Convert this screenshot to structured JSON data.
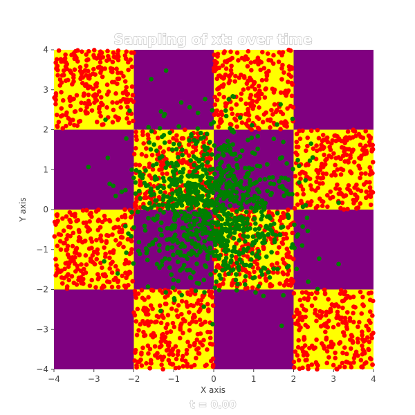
{
  "chart_data": {
    "type": "scatter",
    "title": "Sampling of xt: over time",
    "xlabel": "X axis",
    "ylabel": "Y axis",
    "xlim": [
      -4,
      4
    ],
    "ylim": [
      -4,
      4
    ],
    "xticks": [
      -4,
      -3,
      -2,
      -1,
      0,
      1,
      2,
      3,
      4
    ],
    "yticks": [
      -4,
      -3,
      -2,
      -1,
      0,
      1,
      2,
      3,
      4
    ],
    "tick_labels": [
      "−4",
      "−3",
      "−2",
      "−1",
      "0",
      "1",
      "2",
      "3",
      "4"
    ],
    "grid": false,
    "legend": "none",
    "annotation": "t = 0.00",
    "background": {
      "type": "checkerboard",
      "cell_size": 2,
      "colors": {
        "filled": "#ffff00",
        "empty": "#800080"
      },
      "filled_cells": [
        [
          -4,
          2
        ],
        [
          0,
          2
        ],
        [
          -2,
          0
        ],
        [
          2,
          0
        ],
        [
          -4,
          -2
        ],
        [
          0,
          -2
        ],
        [
          -2,
          -4
        ],
        [
          2,
          -4
        ]
      ]
    },
    "series": [
      {
        "marker_color": "#ff0000",
        "kind": "uniform_in_filled_cells",
        "count_per_cell": 230
      },
      {
        "marker_color": "#008000",
        "kind": "gaussian",
        "mean": [
          0,
          0
        ],
        "std": 1.0,
        "count": 1000
      }
    ]
  }
}
